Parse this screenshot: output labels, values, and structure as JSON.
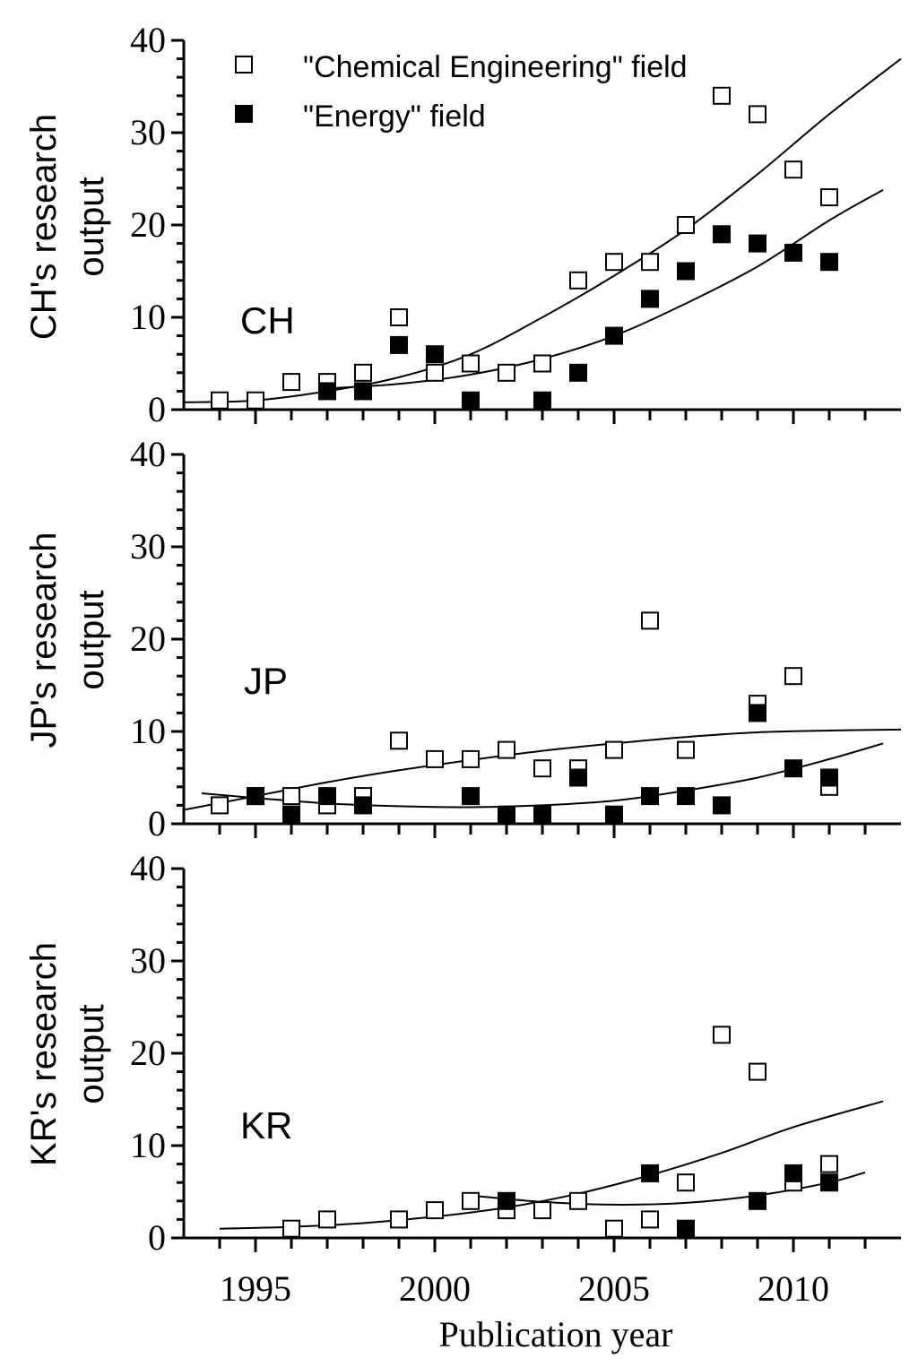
{
  "chart_data": {
    "type": "scatter",
    "xlabel": "Publication year",
    "xlim": [
      1993,
      2013
    ],
    "x_ticks": [
      1995,
      2000,
      2005,
      2010
    ],
    "legend": {
      "position": "top",
      "entries": [
        {
          "name": "\"Chemical Engineering\" field",
          "marker": "open-square"
        },
        {
          "name": "\"Energy\" field",
          "marker": "filled-square"
        }
      ]
    },
    "panels": [
      {
        "id": "CH",
        "label": "CH",
        "ylabel_line1": "CH's research",
        "ylabel_line2": "output",
        "ylim": [
          0,
          40
        ],
        "y_ticks": [
          0,
          10,
          20,
          30,
          40
        ],
        "series": [
          {
            "name": "\"Chemical Engineering\" field",
            "marker": "open-square",
            "x": [
              1994,
              1995,
              1996,
              1997,
              1998,
              1999,
              2000,
              2001,
              2002,
              2003,
              2004,
              2005,
              2006,
              2007,
              2008,
              2009,
              2010,
              2011
            ],
            "y": [
              1,
              1,
              3,
              3,
              4,
              10,
              4,
              5,
              4,
              5,
              14,
              16,
              16,
              20,
              34,
              32,
              26,
              23
            ]
          },
          {
            "name": "\"Energy\" field",
            "marker": "filled-square",
            "x": [
              1997,
              1998,
              1999,
              2000,
              2001,
              2003,
              2004,
              2005,
              2006,
              2007,
              2008,
              2009,
              2010,
              2011
            ],
            "y": [
              2,
              2,
              7,
              6,
              1,
              1,
              4,
              8,
              12,
              15,
              19,
              18,
              17,
              16
            ]
          }
        ],
        "fits": [
          {
            "name": "\"Chemical Engineering\" field trend",
            "x": [
              1993,
              1995,
              1997,
              1999,
              2001,
              2003,
              2005,
              2007,
              2009,
              2011,
              2013
            ],
            "y": [
              0.8,
              1.0,
              2.0,
              3.5,
              6.0,
              10.0,
              14.5,
              19.5,
              25.5,
              32.0,
              38.0
            ]
          },
          {
            "name": "\"Energy\" field trend",
            "x": [
              1997,
              1999,
              2001,
              2003,
              2005,
              2007,
              2009,
              2011,
              2012.5
            ],
            "y": [
              2.3,
              2.8,
              3.8,
              5.5,
              8.0,
              11.5,
              15.5,
              20.5,
              23.8
            ]
          }
        ]
      },
      {
        "id": "JP",
        "label": "JP",
        "ylabel_line1": "JP's research",
        "ylabel_line2": "output",
        "ylim": [
          0,
          40
        ],
        "y_ticks": [
          0,
          10,
          20,
          30,
          40
        ],
        "series": [
          {
            "name": "\"Chemical Engineering\" field",
            "marker": "open-square",
            "x": [
              1994,
              1995,
              1996,
              1997,
              1998,
              1999,
              2000,
              2001,
              2002,
              2003,
              2004,
              2005,
              2006,
              2007,
              2009,
              2010,
              2011
            ],
            "y": [
              2,
              3,
              3,
              2,
              3,
              9,
              7,
              7,
              8,
              6,
              6,
              8,
              22,
              8,
              13,
              16,
              4
            ]
          },
          {
            "name": "\"Energy\" field",
            "marker": "filled-square",
            "x": [
              1995,
              1996,
              1997,
              1998,
              2001,
              2002,
              2003,
              2004,
              2005,
              2006,
              2007,
              2008,
              2009,
              2010,
              2011
            ],
            "y": [
              3,
              1,
              3,
              2,
              3,
              1,
              1,
              5,
              1,
              3,
              3,
              2,
              12,
              6,
              5
            ]
          }
        ],
        "fits": [
          {
            "name": "\"Chemical Engineering\" field trend",
            "x": [
              1993,
              1995,
              1997,
              1999,
              2001,
              2003,
              2005,
              2007,
              2009,
              2011,
              2013
            ],
            "y": [
              1.5,
              3.0,
              4.5,
              5.8,
              6.9,
              7.9,
              8.7,
              9.4,
              9.9,
              10.1,
              10.2
            ]
          },
          {
            "name": "\"Energy\" field trend",
            "x": [
              1993.5,
              1995,
              1997,
              1999,
              2001,
              2003,
              2005,
              2007,
              2009,
              2011,
              2012.5
            ],
            "y": [
              3.3,
              2.8,
              2.2,
              1.9,
              1.8,
              2.0,
              2.5,
              3.6,
              5.0,
              7.0,
              8.7
            ]
          }
        ]
      },
      {
        "id": "KR",
        "label": "KR",
        "ylabel_line1": "KR's research",
        "ylabel_line2": "output",
        "ylim": [
          0,
          40
        ],
        "y_ticks": [
          0,
          10,
          20,
          30,
          40
        ],
        "series": [
          {
            "name": "\"Chemical Engineering\" field",
            "marker": "open-square",
            "x": [
              1996,
              1997,
              1999,
              2000,
              2001,
              2002,
              2003,
              2004,
              2005,
              2006,
              2007,
              2008,
              2009,
              2010,
              2011
            ],
            "y": [
              1,
              2,
              2,
              3,
              4,
              3,
              3,
              4,
              1,
              2,
              6,
              22,
              18,
              6,
              8
            ]
          },
          {
            "name": "\"Energy\" field",
            "marker": "filled-square",
            "x": [
              2002,
              2006,
              2007,
              2009,
              2010,
              2011
            ],
            "y": [
              4,
              7,
              1,
              4,
              7,
              6
            ]
          }
        ],
        "fits": [
          {
            "name": "\"Chemical Engineering\" field trend",
            "x": [
              1994,
              1996,
              1998,
              2000,
              2002,
              2004,
              2006,
              2008,
              2010,
              2012.5
            ],
            "y": [
              1.0,
              1.2,
              1.6,
              2.3,
              3.3,
              4.8,
              6.8,
              9.2,
              12.0,
              14.8
            ]
          },
          {
            "name": "\"Energy\" field trend",
            "x": [
              2001,
              2003,
              2005,
              2007,
              2009,
              2011,
              2012
            ],
            "y": [
              4.6,
              3.9,
              3.6,
              3.8,
              4.6,
              6.0,
              7.1
            ]
          }
        ]
      }
    ]
  }
}
